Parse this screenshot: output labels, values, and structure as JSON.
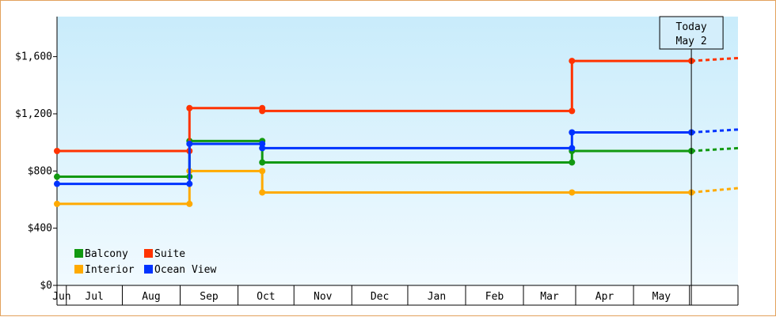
{
  "chart_data": {
    "type": "line",
    "title": "",
    "xlabel": "",
    "ylabel": "",
    "ylim": [
      0,
      1880
    ],
    "y_ticks": [
      0,
      400,
      800,
      1200,
      1600
    ],
    "y_tick_labels": [
      "$0",
      "$400",
      "$800",
      "$1,200",
      "$1,600"
    ],
    "month_labels": [
      "Jun",
      "Jul",
      "Aug",
      "Sep",
      "Oct",
      "Nov",
      "Dec",
      "Jan",
      "Feb",
      "Mar",
      "Apr",
      "May"
    ],
    "x_domain": [
      "2013-05-27",
      "2014-05-27"
    ],
    "grid": false,
    "legend_position": "bottom-left",
    "today_marker": {
      "date": "2014-05-02",
      "label_line1": "Today",
      "label_line2": "May 2"
    },
    "series": [
      {
        "name": "Balcony",
        "color": "#119911",
        "points": [
          [
            "2013-05-27",
            760
          ],
          [
            "2013-08-06",
            760
          ],
          [
            "2013-08-06",
            1010
          ],
          [
            "2013-09-14",
            1010
          ],
          [
            "2013-09-14",
            860
          ],
          [
            "2014-02-27",
            860
          ],
          [
            "2014-02-27",
            940
          ],
          [
            "2014-05-02",
            940
          ]
        ],
        "forecast": [
          [
            "2014-05-02",
            940
          ],
          [
            "2014-05-27",
            960
          ]
        ]
      },
      {
        "name": "Suite",
        "color": "#ff3300",
        "points": [
          [
            "2013-05-27",
            940
          ],
          [
            "2013-08-06",
            940
          ],
          [
            "2013-08-06",
            1240
          ],
          [
            "2013-09-14",
            1240
          ],
          [
            "2013-09-14",
            1220
          ],
          [
            "2014-02-27",
            1220
          ],
          [
            "2014-02-27",
            1570
          ],
          [
            "2014-05-02",
            1570
          ]
        ],
        "forecast": [
          [
            "2014-05-02",
            1570
          ],
          [
            "2014-05-27",
            1590
          ]
        ]
      },
      {
        "name": "Interior",
        "color": "#ffaa00",
        "points": [
          [
            "2013-05-27",
            570
          ],
          [
            "2013-08-06",
            570
          ],
          [
            "2013-08-06",
            800
          ],
          [
            "2013-09-14",
            800
          ],
          [
            "2013-09-14",
            650
          ],
          [
            "2014-02-27",
            650
          ],
          [
            "2014-05-02",
            650
          ]
        ],
        "forecast": [
          [
            "2014-05-02",
            650
          ],
          [
            "2014-05-27",
            680
          ]
        ]
      },
      {
        "name": "Ocean View",
        "color": "#0033ff",
        "points": [
          [
            "2013-05-27",
            710
          ],
          [
            "2013-08-06",
            710
          ],
          [
            "2013-08-06",
            990
          ],
          [
            "2013-09-14",
            990
          ],
          [
            "2013-09-14",
            960
          ],
          [
            "2014-02-27",
            960
          ],
          [
            "2014-02-27",
            1070
          ],
          [
            "2014-05-02",
            1070
          ]
        ],
        "forecast": [
          [
            "2014-05-02",
            1070
          ],
          [
            "2014-05-27",
            1090
          ]
        ]
      }
    ],
    "legend_order": [
      "Balcony",
      "Suite",
      "Interior",
      "Ocean View"
    ]
  }
}
